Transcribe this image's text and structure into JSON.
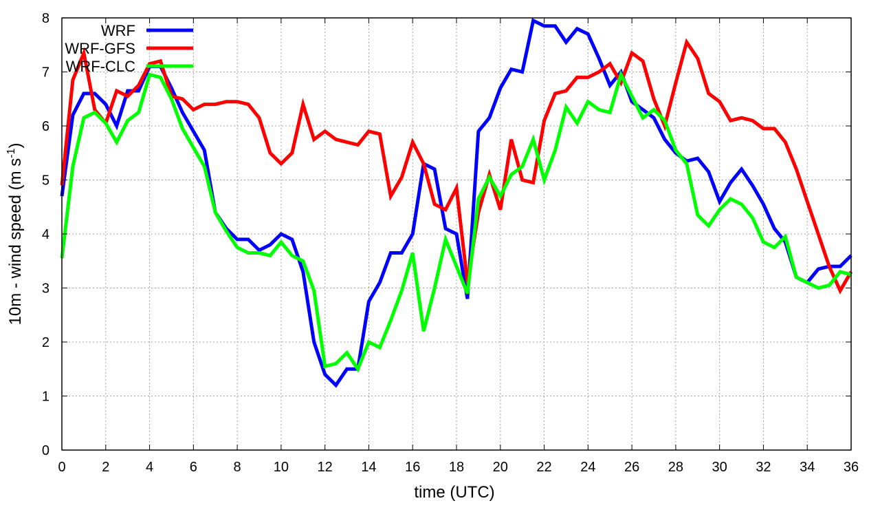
{
  "chart_data": {
    "type": "line",
    "title": "",
    "xlabel": "time (UTC)",
    "ylabel": {
      "main": "10m - wind speed  (m s",
      "sup": "-1",
      "close": ")"
    },
    "xlim": [
      0,
      36
    ],
    "ylim": [
      0,
      8
    ],
    "xticks": [
      0,
      2,
      4,
      6,
      8,
      10,
      12,
      14,
      16,
      18,
      20,
      22,
      24,
      26,
      28,
      30,
      32,
      34,
      36
    ],
    "yticks": [
      0,
      1,
      2,
      3,
      4,
      5,
      6,
      7,
      8
    ],
    "grid": true,
    "legend_position": "top-left",
    "x_step": 0.5,
    "series": [
      {
        "name": "WRF",
        "color": "#0000ff",
        "values": [
          4.7,
          6.2,
          6.6,
          6.6,
          6.4,
          6.0,
          6.65,
          6.65,
          7.1,
          7.1,
          6.7,
          6.25,
          5.9,
          5.55,
          4.4,
          4.1,
          3.9,
          3.9,
          3.7,
          3.8,
          4.0,
          3.9,
          3.3,
          2.0,
          1.4,
          1.2,
          1.5,
          1.5,
          2.75,
          3.1,
          3.65,
          3.65,
          4.0,
          5.3,
          5.2,
          4.1,
          4.0,
          2.8,
          5.9,
          6.15,
          6.7,
          7.05,
          7.0,
          7.95,
          7.85,
          7.85,
          7.55,
          7.8,
          7.7,
          7.25,
          6.75,
          7.0,
          6.45,
          6.3,
          6.15,
          5.75,
          5.5,
          5.35,
          5.4,
          5.15,
          4.6,
          4.95,
          5.2,
          4.9,
          4.55,
          4.1,
          3.85,
          3.2,
          3.1,
          3.35,
          3.4,
          3.4,
          3.6
        ]
      },
      {
        "name": "WRF-GFS",
        "color": "#ff0000",
        "values": [
          4.9,
          6.85,
          7.35,
          6.3,
          6.05,
          6.65,
          6.55,
          6.75,
          7.15,
          7.2,
          6.55,
          6.5,
          6.3,
          6.4,
          6.4,
          6.45,
          6.45,
          6.4,
          6.15,
          5.5,
          5.3,
          5.5,
          6.4,
          5.75,
          5.9,
          5.75,
          5.7,
          5.65,
          5.9,
          5.85,
          4.7,
          5.05,
          5.7,
          5.3,
          4.55,
          4.45,
          4.85,
          3.1,
          4.4,
          5.1,
          4.45,
          5.75,
          5.0,
          4.95,
          6.1,
          6.6,
          6.65,
          6.9,
          6.9,
          7.0,
          7.15,
          6.8,
          7.35,
          7.2,
          6.5,
          6.0,
          6.8,
          7.55,
          7.25,
          6.6,
          6.45,
          6.1,
          6.15,
          6.1,
          5.95,
          5.95,
          5.7,
          5.2,
          4.6,
          4.0,
          3.4,
          2.95,
          3.3
        ]
      },
      {
        "name": "WRF-CLC",
        "color": "#00ff00",
        "values": [
          3.55,
          5.25,
          6.15,
          6.25,
          6.05,
          5.7,
          6.1,
          6.25,
          6.95,
          6.9,
          6.5,
          5.95,
          5.6,
          5.25,
          4.4,
          4.05,
          3.75,
          3.65,
          3.65,
          3.6,
          3.85,
          3.6,
          3.5,
          2.95,
          1.55,
          1.6,
          1.8,
          1.5,
          2.0,
          1.9,
          2.4,
          2.95,
          3.65,
          2.2,
          3.0,
          3.9,
          3.4,
          2.9,
          4.65,
          5.05,
          4.7,
          5.1,
          5.25,
          5.75,
          5.0,
          5.55,
          6.35,
          6.05,
          6.45,
          6.3,
          6.25,
          6.95,
          6.55,
          6.15,
          6.3,
          6.1,
          5.55,
          5.3,
          4.35,
          4.15,
          4.45,
          4.65,
          4.55,
          4.3,
          3.85,
          3.75,
          3.95,
          3.2,
          3.1,
          3.0,
          3.05,
          3.3,
          3.25
        ]
      }
    ]
  }
}
